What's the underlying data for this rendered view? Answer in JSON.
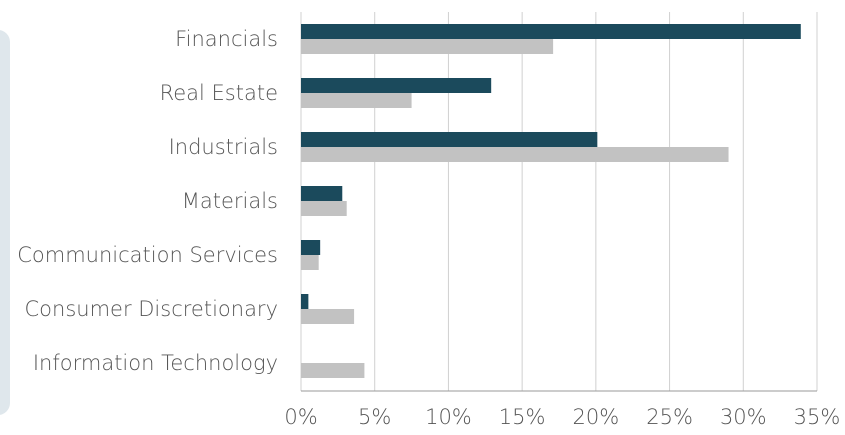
{
  "chart_data": {
    "type": "hbar",
    "categories": [
      "Financials",
      "Real Estate",
      "Industrials",
      "Materials",
      "Communication Services",
      "Consumer Discretionary",
      "Information Technology"
    ],
    "series": [
      {
        "color": "#1b4a5c",
        "values": [
          33.9,
          12.9,
          20.1,
          2.8,
          1.3,
          0.5,
          0
        ]
      },
      {
        "color": "#c2c2c2",
        "values": [
          17.1,
          7.5,
          29.0,
          3.1,
          1.2,
          3.6,
          4.3
        ]
      }
    ],
    "xlim": [
      0,
      35
    ],
    "xticks": [
      {
        "value": 0,
        "label": "0%"
      },
      {
        "value": 5,
        "label": "5%"
      },
      {
        "value": 10,
        "label": "10%"
      },
      {
        "value": 15,
        "label": "15%"
      },
      {
        "value": 20,
        "label": "20%"
      },
      {
        "value": 25,
        "label": "25%"
      },
      {
        "value": 30,
        "label": "30%"
      },
      {
        "value": 35,
        "label": "35%"
      }
    ],
    "grid": true
  }
}
